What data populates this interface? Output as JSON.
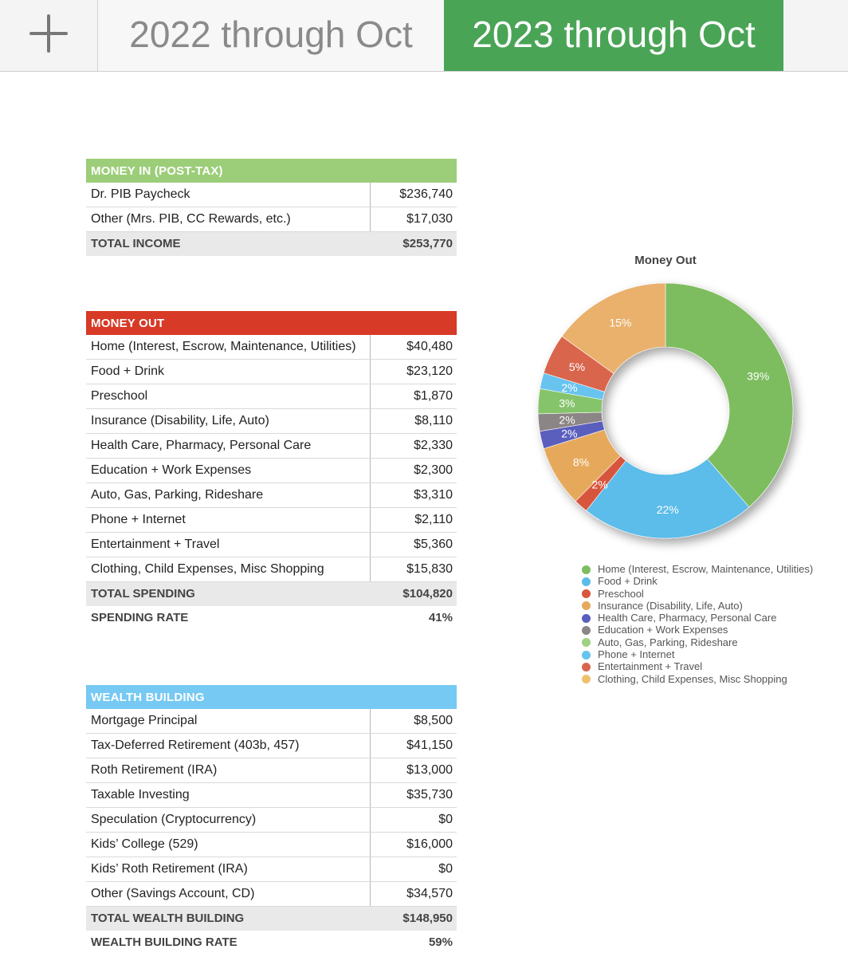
{
  "tabs": {
    "add_label": "+",
    "tab1": "2022 through Oct",
    "tab2": "2023 through Oct"
  },
  "money_in": {
    "header": "MONEY IN (POST-TAX)",
    "rows": [
      {
        "label": "Dr. PIB Paycheck",
        "value": "$236,740"
      },
      {
        "label": "Other (Mrs. PIB, CC Rewards, etc.)",
        "value": "$17,030"
      }
    ],
    "total_label": "TOTAL INCOME",
    "total_value": "$253,770"
  },
  "money_out": {
    "header": "MONEY OUT",
    "rows": [
      {
        "label": "Home (Interest, Escrow, Maintenance, Utilities)",
        "value": "$40,480"
      },
      {
        "label": "Food + Drink",
        "value": "$23,120"
      },
      {
        "label": "Preschool",
        "value": "$1,870"
      },
      {
        "label": "Insurance (Disability, Life, Auto)",
        "value": "$8,110"
      },
      {
        "label": "Health Care, Pharmacy, Personal Care",
        "value": "$2,330"
      },
      {
        "label": "Education + Work Expenses",
        "value": "$2,300"
      },
      {
        "label": "Auto, Gas, Parking, Rideshare",
        "value": "$3,310"
      },
      {
        "label": "Phone + Internet",
        "value": "$2,110"
      },
      {
        "label": "Entertainment + Travel",
        "value": "$5,360"
      },
      {
        "label": "Clothing, Child Expenses, Misc Shopping",
        "value": "$15,830"
      }
    ],
    "total_label": "TOTAL SPENDING",
    "total_value": "$104,820",
    "rate_label": "SPENDING RATE",
    "rate_value": "41%"
  },
  "wealth_building": {
    "header": "WEALTH BUILDING",
    "rows": [
      {
        "label": "Mortgage Principal",
        "value": "$8,500"
      },
      {
        "label": "Tax-Deferred Retirement (403b, 457)",
        "value": "$41,150"
      },
      {
        "label": "Roth Retirement (IRA)",
        "value": "$13,000"
      },
      {
        "label": "Taxable Investing",
        "value": "$35,730"
      },
      {
        "label": "Speculation (Cryptocurrency)",
        "value": "$0"
      },
      {
        "label": "Kids’ College (529)",
        "value": "$16,000"
      },
      {
        "label": "Kids’ Roth Retirement (IRA)",
        "value": "$0"
      },
      {
        "label": "Other (Savings Account, CD)",
        "value": "$34,570"
      }
    ],
    "total_label": "TOTAL WEALTH BUILDING",
    "total_value": "$148,950",
    "rate_label": "WEALTH BUILDING RATE",
    "rate_value": "59%"
  },
  "chart_data": {
    "type": "pie",
    "title": "Money Out",
    "categories": [
      "Home (Interest, Escrow, Maintenance, Utilities)",
      "Food + Drink",
      "Preschool",
      "Insurance (Disability, Life, Auto)",
      "Health Care, Pharmacy, Personal Care",
      "Education + Work Expenses",
      "Auto, Gas, Parking, Rideshare",
      "Phone + Internet",
      "Entertainment + Travel",
      "Clothing, Child Expenses, Misc Shopping"
    ],
    "values": [
      40480,
      23120,
      1870,
      8110,
      2330,
      2300,
      3310,
      2110,
      5360,
      15830
    ],
    "labels": [
      "39%",
      "22%",
      "2%",
      "8%",
      "2%",
      "2%",
      "3%",
      "2%",
      "5%",
      "15%"
    ],
    "colors": [
      "#7dbd5f",
      "#5bbcea",
      "#d8553e",
      "#e6a95c",
      "#5a5fbd",
      "#8c8585",
      "#86c46c",
      "#67c3ef",
      "#d9654e",
      "#e9b16c"
    ],
    "legend_colors": [
      "#7dbd5f",
      "#5bbcea",
      "#d8553e",
      "#e6a95c",
      "#5a5fbd",
      "#8c8585",
      "#9fd184",
      "#67c3ef",
      "#d9654e",
      "#f0bf6e"
    ],
    "donut": true,
    "legend_position": "bottom"
  }
}
